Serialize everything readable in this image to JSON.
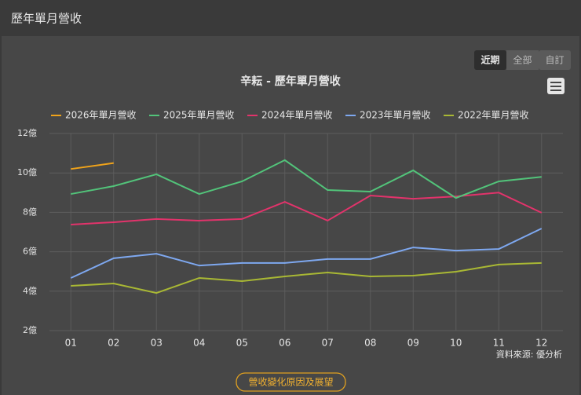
{
  "header": {
    "title": "歷年單月營收"
  },
  "range_buttons": [
    "近期",
    "全部",
    "自訂"
  ],
  "source_note": "資料來源: 優分析",
  "footer_button": "營收變化原因及展望",
  "chart_data": {
    "type": "line",
    "title": "辛耘 - 歷年單月營收",
    "categories": [
      "01",
      "02",
      "03",
      "04",
      "05",
      "06",
      "07",
      "08",
      "09",
      "10",
      "11",
      "12"
    ],
    "series": [
      {
        "name": "2026年單月營收",
        "color": "#f0a31a",
        "values": [
          10.2,
          10.5,
          null,
          null,
          null,
          null,
          null,
          null,
          null,
          null,
          null,
          null
        ]
      },
      {
        "name": "2025年單月營收",
        "color": "#52c47a",
        "values": [
          8.93,
          9.33,
          9.93,
          8.93,
          9.57,
          10.65,
          9.13,
          9.05,
          10.13,
          8.73,
          9.57,
          9.8
        ]
      },
      {
        "name": "2024年單月營收",
        "color": "#e2336b",
        "values": [
          7.38,
          7.5,
          7.66,
          7.58,
          7.66,
          8.53,
          7.58,
          8.85,
          8.69,
          8.81,
          9.0,
          7.98
        ]
      },
      {
        "name": "2023年單月營收",
        "color": "#7ea8f0",
        "values": [
          4.67,
          5.67,
          5.9,
          5.3,
          5.43,
          5.43,
          5.63,
          5.63,
          6.22,
          6.06,
          6.14,
          7.18
        ]
      },
      {
        "name": "2022年單月營收",
        "color": "#a9b834",
        "values": [
          4.27,
          4.39,
          3.91,
          4.67,
          4.51,
          4.75,
          4.95,
          4.75,
          4.79,
          4.99,
          5.35,
          5.43
        ]
      }
    ],
    "ylim": [
      2,
      12
    ],
    "yticks": [
      {
        "value": 2,
        "label": "2億"
      },
      {
        "value": 4,
        "label": "4億"
      },
      {
        "value": 6,
        "label": "6億"
      },
      {
        "value": 8,
        "label": "8億"
      },
      {
        "value": 10,
        "label": "10億"
      },
      {
        "value": 12,
        "label": "12億"
      }
    ],
    "grid": true,
    "legend": "top"
  }
}
